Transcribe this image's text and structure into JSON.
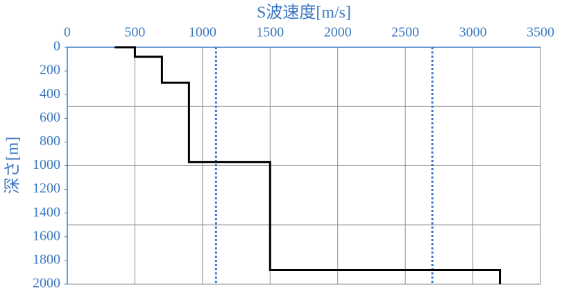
{
  "chart_data": {
    "type": "line",
    "title": "S波速度[m/s]",
    "y_label": "深さ[m]",
    "series": [
      {
        "color": "#000000",
        "x": [
          350,
          500,
          500,
          700,
          700,
          900,
          900,
          1500,
          1500,
          3200,
          3200
        ],
        "values": [
          0,
          0,
          80,
          80,
          300,
          300,
          970,
          970,
          1880,
          1880,
          2000
        ]
      }
    ],
    "reference_lines": [
      1100,
      2700
    ],
    "reference_color": "#3a78d0",
    "xlim": [
      0,
      3500
    ],
    "xticks": [
      0,
      500,
      1000,
      1500,
      2000,
      2500,
      3000,
      3500
    ],
    "ylim": [
      0,
      2000
    ],
    "yticks": [
      0,
      200,
      400,
      600,
      800,
      1000,
      1200,
      1400,
      1600,
      1800,
      2000
    ],
    "ygrid": [
      500,
      1000,
      1500,
      2000
    ],
    "y_inverted": true,
    "x_axis_position": "top",
    "grid": true
  }
}
